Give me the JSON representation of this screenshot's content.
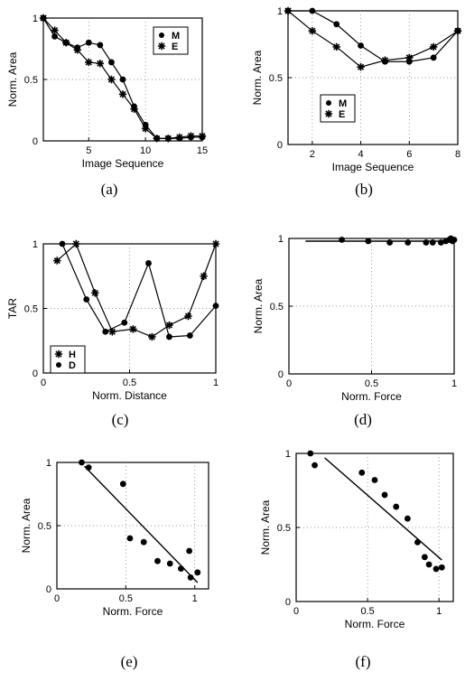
{
  "chart_data": [
    {
      "panel": "(a)",
      "type": "line",
      "xlabel": "Image Sequence",
      "ylabel": "Norm. Area",
      "xlim": [
        1,
        15
      ],
      "ylim": [
        0,
        1
      ],
      "xticks": [
        5,
        10,
        15
      ],
      "yticks": [
        0,
        0.5,
        1
      ],
      "xtick_labels": [
        "5",
        "10",
        "15"
      ],
      "ytick_labels": [
        "0",
        "0.5",
        "1"
      ],
      "grid": true,
      "legend_position": "top-right",
      "series": [
        {
          "name": "M",
          "marker": "dot",
          "x": [
            1,
            2,
            3,
            4,
            5,
            6,
            7,
            8,
            9,
            10,
            11,
            12,
            13,
            14,
            15
          ],
          "values": [
            1.0,
            0.85,
            0.8,
            0.76,
            0.8,
            0.78,
            0.64,
            0.5,
            0.28,
            0.13,
            0.02,
            0.02,
            0.02,
            0.03,
            0.03
          ]
        },
        {
          "name": "E",
          "marker": "star",
          "x": [
            1,
            2,
            3,
            4,
            5,
            6,
            7,
            8,
            9,
            10,
            11,
            12,
            13,
            14,
            15
          ],
          "values": [
            1.0,
            0.9,
            0.8,
            0.74,
            0.64,
            0.63,
            0.5,
            0.38,
            0.26,
            0.1,
            0.02,
            0.02,
            0.03,
            0.04,
            0.04
          ]
        }
      ]
    },
    {
      "panel": "(b)",
      "type": "line",
      "xlabel": "Image Sequence",
      "ylabel": "Norm. Area",
      "xlim": [
        1,
        8
      ],
      "ylim": [
        0,
        1
      ],
      "xticks": [
        2,
        4,
        6,
        8
      ],
      "yticks": [
        0,
        0.5,
        1
      ],
      "xtick_labels": [
        "2",
        "4",
        "6",
        "8"
      ],
      "ytick_labels": [
        "0",
        "0.5",
        "1"
      ],
      "grid": true,
      "legend_position": "lower-center",
      "series": [
        {
          "name": "M",
          "marker": "dot",
          "x": [
            1,
            2,
            3,
            4,
            5,
            6,
            7,
            8
          ],
          "values": [
            1.0,
            1.0,
            0.9,
            0.74,
            0.62,
            0.62,
            0.65,
            0.85
          ]
        },
        {
          "name": "E",
          "marker": "star",
          "x": [
            1,
            2,
            3,
            4,
            5,
            6,
            7,
            8
          ],
          "values": [
            1.0,
            0.85,
            0.73,
            0.58,
            0.63,
            0.65,
            0.73,
            0.85
          ]
        }
      ]
    },
    {
      "panel": "(c)",
      "type": "line",
      "xlabel": "Norm. Distance",
      "ylabel": "TAR",
      "xlim": [
        0,
        1
      ],
      "ylim": [
        0,
        1
      ],
      "xticks": [
        0,
        0.5,
        1
      ],
      "yticks": [
        0,
        0.5,
        1
      ],
      "xtick_labels": [
        "0",
        "0.5",
        "1"
      ],
      "ytick_labels": [
        "0",
        "0.5",
        "1"
      ],
      "grid": true,
      "legend_position": "bottom-left",
      "series": [
        {
          "name": "H",
          "marker": "star",
          "x": [
            0.08,
            0.19,
            0.3,
            0.4,
            0.52,
            0.63,
            0.73,
            0.84,
            0.93,
            1.0
          ],
          "values": [
            0.87,
            1.0,
            0.62,
            0.32,
            0.34,
            0.28,
            0.37,
            0.44,
            0.75,
            1.0
          ]
        },
        {
          "name": "D",
          "marker": "dot",
          "x": [
            0.11,
            0.25,
            0.36,
            0.47,
            0.61,
            0.73,
            0.85,
            1.0
          ],
          "values": [
            1.0,
            0.57,
            0.32,
            0.39,
            0.85,
            0.28,
            0.29,
            0.52
          ]
        }
      ]
    },
    {
      "panel": "(d)",
      "type": "scatter",
      "xlabel": "Norm. Force",
      "ylabel": "Norm. Area",
      "xlim": [
        0,
        1
      ],
      "ylim": [
        0,
        1
      ],
      "xticks": [
        0,
        0.5,
        1
      ],
      "yticks": [
        0,
        0.5,
        1
      ],
      "xtick_labels": [
        "0",
        "0.5",
        "1"
      ],
      "ytick_labels": [
        "0",
        "0.5",
        "1"
      ],
      "grid": true,
      "points": {
        "x": [
          0.32,
          0.48,
          0.61,
          0.72,
          0.83,
          0.87,
          0.92,
          0.95,
          0.97,
          0.98,
          0.99,
          1.0
        ],
        "values": [
          0.99,
          0.98,
          0.97,
          0.97,
          0.97,
          0.97,
          0.97,
          0.98,
          0.99,
          1.0,
          0.98,
          0.99
        ]
      },
      "fit_line": {
        "x": [
          0.1,
          1.0
        ],
        "values": [
          0.98,
          0.98
        ]
      }
    },
    {
      "panel": "(e)",
      "type": "scatter",
      "xlabel": "Norm. Force",
      "ylabel": "Norm. Area",
      "xlim": [
        0,
        1.1
      ],
      "ylim": [
        0,
        1
      ],
      "xticks": [
        0,
        0.5,
        1
      ],
      "yticks": [
        0,
        0.5,
        1
      ],
      "xtick_labels": [
        "0",
        "0.5",
        "1"
      ],
      "ytick_labels": [
        "0",
        "0.5",
        "1"
      ],
      "grid": true,
      "points": {
        "x": [
          0.18,
          0.23,
          0.48,
          0.53,
          0.63,
          0.73,
          0.82,
          0.9,
          0.96,
          0.97,
          1.02
        ],
        "values": [
          1.0,
          0.96,
          0.83,
          0.4,
          0.37,
          0.22,
          0.2,
          0.16,
          0.3,
          0.09,
          0.13
        ]
      },
      "fit_line": {
        "x": [
          0.2,
          1.02
        ],
        "values": [
          0.97,
          0.05
        ]
      }
    },
    {
      "panel": "(f)",
      "type": "scatter",
      "xlabel": "Norm. Force",
      "ylabel": "Norm. Area",
      "xlim": [
        0,
        1.1
      ],
      "ylim": [
        0,
        1
      ],
      "xticks": [
        0,
        0.5,
        1
      ],
      "yticks": [
        0,
        0.5,
        1
      ],
      "xtick_labels": [
        "0",
        "0.5",
        "1"
      ],
      "ytick_labels": [
        "0",
        "0.5",
        "1"
      ],
      "grid": true,
      "points": {
        "x": [
          0.1,
          0.13,
          0.46,
          0.55,
          0.62,
          0.7,
          0.78,
          0.85,
          0.9,
          0.93,
          0.98,
          1.02
        ],
        "values": [
          1.0,
          0.92,
          0.87,
          0.82,
          0.72,
          0.64,
          0.56,
          0.4,
          0.3,
          0.25,
          0.22,
          0.23
        ]
      },
      "fit_line": {
        "x": [
          0.2,
          1.02
        ],
        "values": [
          0.97,
          0.28
        ]
      }
    }
  ],
  "captions": [
    "(a)",
    "(b)",
    "(c)",
    "(d)",
    "(e)",
    "(f)"
  ]
}
